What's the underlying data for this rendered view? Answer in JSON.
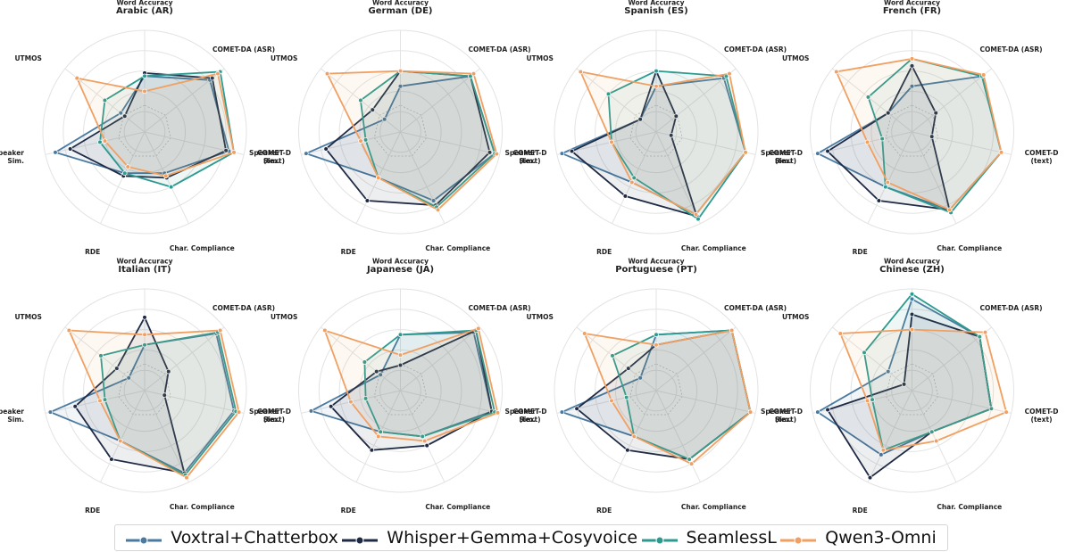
{
  "chart_data": {
    "type": "radar",
    "axes": [
      "Word Accuracy",
      "COMET-DA (ASR)",
      "COMET-D (text)",
      "Char. Compliance",
      "RDE",
      "Speaker Sim.",
      "UTMOS"
    ],
    "series_meta": [
      {
        "name": "Voxtral+Chatterbox",
        "color": "#4a7aa0"
      },
      {
        "name": "Whisper+Gemma+Cosyvoice",
        "color": "#1f2a44"
      },
      {
        "name": "SeamlessL",
        "color": "#2e9a8f"
      },
      {
        "name": "Qwen3-Omni",
        "color": "#f0a062"
      }
    ],
    "charts": [
      {
        "title": "Arabic (AR)",
        "series": [
          {
            "name": "Voxtral+Chatterbox",
            "values": [
              0.55,
              0.82,
              0.85,
              0.45,
              0.45,
              0.9,
              0.3
            ]
          },
          {
            "name": "Whisper+Gemma+Cosyvoice",
            "values": [
              0.58,
              0.85,
              0.82,
              0.5,
              0.48,
              0.75,
              0.25
            ]
          },
          {
            "name": "SeamlessL",
            "values": [
              0.55,
              0.95,
              0.9,
              0.6,
              0.45,
              0.45,
              0.5
            ]
          },
          {
            "name": "Qwen3-Omni",
            "values": [
              0.4,
              0.92,
              0.9,
              0.48,
              0.38,
              0.4,
              0.85
            ]
          }
        ]
      },
      {
        "title": "German (DE)",
        "series": [
          {
            "name": "Voxtral+Chatterbox",
            "values": [
              0.45,
              0.88,
              0.95,
              0.75,
              0.5,
              0.95,
              0.2
            ]
          },
          {
            "name": "Whisper+Gemma+Cosyvoice",
            "values": [
              0.6,
              0.88,
              0.9,
              0.8,
              0.75,
              0.75,
              0.35
            ]
          },
          {
            "name": "SeamlessL",
            "values": [
              0.6,
              0.88,
              0.95,
              0.82,
              0.5,
              0.35,
              0.5
            ]
          },
          {
            "name": "Qwen3-Omni",
            "values": [
              0.6,
              0.92,
              0.97,
              0.85,
              0.5,
              0.4,
              0.92
            ]
          }
        ]
      },
      {
        "title": "Spanish (ES)",
        "series": [
          {
            "name": "Voxtral+Chatterbox",
            "values": [
              0.45,
              0.85,
              0.9,
              0.9,
              0.55,
              0.95,
              0.2
            ]
          },
          {
            "name": "Whisper+Gemma+Cosyvoice",
            "values": [
              0.6,
              0.25,
              0.15,
              0.92,
              0.7,
              0.85,
              0.2
            ]
          },
          {
            "name": "SeamlessL",
            "values": [
              0.6,
              0.88,
              0.9,
              0.95,
              0.5,
              0.45,
              0.6
            ]
          },
          {
            "name": "Qwen3-Omni",
            "values": [
              0.45,
              0.92,
              0.9,
              0.9,
              0.55,
              0.45,
              0.95
            ]
          }
        ]
      },
      {
        "title": "French (FR)",
        "series": [
          {
            "name": "Voxtral+Chatterbox",
            "values": [
              0.45,
              0.88,
              0.9,
              0.85,
              0.6,
              0.95,
              0.3
            ]
          },
          {
            "name": "Whisper+Gemma+Cosyvoice",
            "values": [
              0.65,
              0.3,
              0.2,
              0.85,
              0.75,
              0.85,
              0.3
            ]
          },
          {
            "name": "SeamlessL",
            "values": [
              0.72,
              0.88,
              0.9,
              0.88,
              0.6,
              0.3,
              0.55
            ]
          },
          {
            "name": "Qwen3-Omni",
            "values": [
              0.72,
              0.9,
              0.9,
              0.85,
              0.55,
              0.45,
              0.95
            ]
          }
        ]
      },
      {
        "title": "Italian (IT)",
        "series": [
          {
            "name": "Voxtral+Chatterbox",
            "values": [
              0.45,
              0.9,
              0.9,
              0.9,
              0.55,
              0.95,
              0.2
            ]
          },
          {
            "name": "Whisper+Gemma+Cosyvoice",
            "values": [
              0.72,
              0.3,
              0.2,
              0.9,
              0.75,
              0.7,
              0.35
            ]
          },
          {
            "name": "SeamlessL",
            "values": [
              0.45,
              0.92,
              0.92,
              0.92,
              0.55,
              0.4,
              0.55
            ]
          },
          {
            "name": "Qwen3-Omni",
            "values": [
              0.55,
              0.95,
              0.95,
              0.95,
              0.55,
              0.45,
              0.95
            ]
          }
        ]
      },
      {
        "title": "Japanese (JA)",
        "series": [
          {
            "name": "Voxtral+Chatterbox",
            "values": [
              0.55,
              0.92,
              0.92,
              0.5,
              0.45,
              0.9,
              0.25
            ]
          },
          {
            "name": "Whisper+Gemma+Cosyvoice",
            "values": [
              0.25,
              0.95,
              0.92,
              0.6,
              0.65,
              0.7,
              0.3
            ]
          },
          {
            "name": "SeamlessL",
            "values": [
              0.55,
              0.95,
              0.95,
              0.5,
              0.45,
              0.35,
              0.45
            ]
          },
          {
            "name": "Qwen3-Omni",
            "values": [
              0.35,
              0.98,
              0.98,
              0.55,
              0.5,
              0.5,
              0.95
            ]
          }
        ]
      },
      {
        "title": "Portuguese (PT)",
        "series": [
          {
            "name": "Voxtral+Chatterbox",
            "values": [
              0.55,
              0.95,
              0.95,
              0.75,
              0.5,
              0.95,
              0.2
            ]
          },
          {
            "name": "Whisper+Gemma+Cosyvoice",
            "values": [
              0.45,
              0.95,
              0.95,
              0.75,
              0.65,
              0.8,
              0.35
            ]
          },
          {
            "name": "SeamlessL",
            "values": [
              0.55,
              0.95,
              0.95,
              0.75,
              0.5,
              0.3,
              0.55
            ]
          },
          {
            "name": "Qwen3-Omni",
            "values": [
              0.45,
              0.95,
              0.95,
              0.8,
              0.5,
              0.45,
              0.9
            ]
          }
        ]
      },
      {
        "title": "Chinese (ZH)",
        "series": [
          {
            "name": "Voxtral+Chatterbox",
            "values": [
              0.9,
              0.85,
              0.8,
              0.45,
              0.7,
              0.95,
              0.3
            ]
          },
          {
            "name": "Whisper+Gemma+Cosyvoice",
            "values": [
              0.75,
              0.85,
              0.8,
              0.45,
              0.95,
              0.85,
              0.1
            ]
          },
          {
            "name": "SeamlessL",
            "values": [
              0.95,
              0.85,
              0.8,
              0.45,
              0.65,
              0.4,
              0.6
            ]
          },
          {
            "name": "Qwen3-Omni",
            "values": [
              0.6,
              0.92,
              0.95,
              0.55,
              0.65,
              0.45,
              0.9
            ]
          }
        ]
      }
    ],
    "radial_grid": "on",
    "legend": "bottom-center"
  },
  "legend_items": [
    {
      "label": "Voxtral+Chatterbox",
      "color": "#4a7aa0"
    },
    {
      "label": "Whisper+Gemma+Cosyvoice",
      "color": "#1f2a44"
    },
    {
      "label": "SeamlessL",
      "color": "#2e9a8f"
    },
    {
      "label": "Qwen3-Omni",
      "color": "#f0a062"
    }
  ]
}
